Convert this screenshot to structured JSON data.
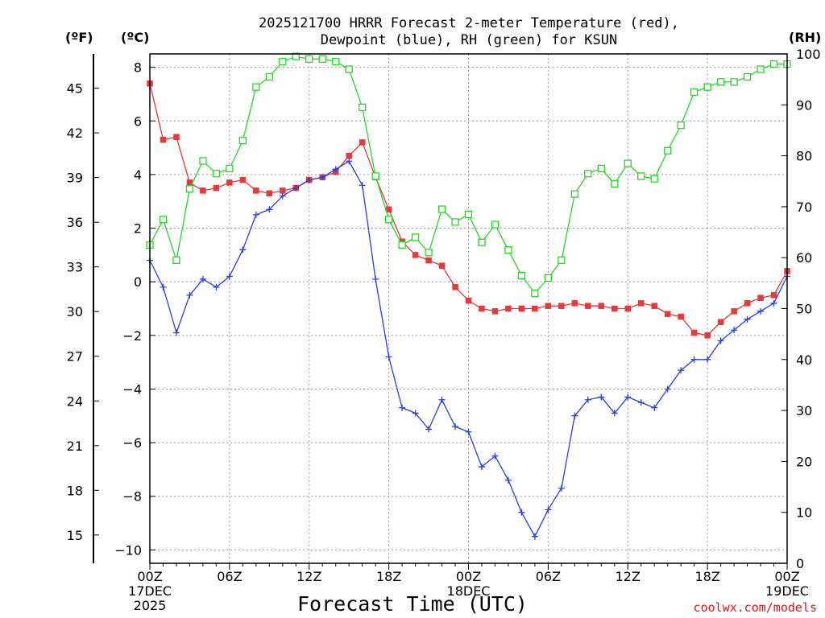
{
  "chart_data": {
    "type": "line",
    "title_lines": [
      "2025121700 HRRR Forecast 2-meter Temperature (red),",
      "Dewpoint (blue), RH (green) for KSUN"
    ],
    "unit_labels": {
      "fahrenheit": "(ºF)",
      "celsius": "(ºC)",
      "rh": "(RH)"
    },
    "xlabel": "Forecast Time (UTC)",
    "credit": "coolwx.com/models",
    "forecast_hours": [
      0,
      1,
      2,
      3,
      4,
      5,
      6,
      7,
      8,
      9,
      10,
      11,
      12,
      13,
      14,
      15,
      16,
      17,
      18,
      19,
      20,
      21,
      22,
      23,
      24,
      25,
      26,
      27,
      28,
      29,
      30,
      31,
      32,
      33,
      34,
      35,
      36,
      37,
      38,
      39,
      40,
      41,
      42,
      43,
      44,
      45,
      46,
      47,
      48
    ],
    "x_ticks": [
      {
        "hour": 0,
        "lines": [
          "00Z",
          "17DEC",
          "2025"
        ]
      },
      {
        "hour": 6,
        "lines": [
          "06Z"
        ]
      },
      {
        "hour": 12,
        "lines": [
          "12Z"
        ]
      },
      {
        "hour": 18,
        "lines": [
          "18Z"
        ]
      },
      {
        "hour": 24,
        "lines": [
          "00Z",
          "18DEC"
        ]
      },
      {
        "hour": 30,
        "lines": [
          "06Z"
        ]
      },
      {
        "hour": 36,
        "lines": [
          "12Z"
        ]
      },
      {
        "hour": 42,
        "lines": [
          "18Z"
        ]
      },
      {
        "hour": 48,
        "lines": [
          "00Z",
          "19DEC"
        ]
      }
    ],
    "xlim": [
      0,
      48
    ],
    "celsius_axis": {
      "ylim": [
        -10.5,
        8.5
      ],
      "ticks": [
        8,
        6,
        4,
        2,
        0,
        -2,
        -4,
        -6,
        -8,
        -10
      ],
      "labels": [
        "8",
        "6",
        "4",
        "2",
        "0",
        "−2",
        "−4",
        "−6",
        "−8",
        "−10"
      ]
    },
    "fahrenheit_axis": {
      "ticks": [
        45,
        42,
        39,
        36,
        33,
        30,
        27,
        24,
        21,
        18,
        15
      ],
      "labels": [
        "45",
        "42",
        "39",
        "36",
        "33",
        "30",
        "27",
        "24",
        "21",
        "18",
        "15"
      ]
    },
    "rh_axis": {
      "ylim": [
        0,
        100
      ],
      "ticks": [
        100,
        90,
        80,
        70,
        60,
        50,
        40,
        30,
        20,
        10,
        0
      ],
      "labels": [
        "100",
        "90",
        "80",
        "70",
        "60",
        "50",
        "40",
        "30",
        "20",
        "10",
        "0"
      ]
    },
    "grid": true,
    "series": [
      {
        "key": "temperature",
        "color": "#e8383a",
        "marker": "filled-square",
        "axis": "celsius",
        "values": [
          7.4,
          5.3,
          5.4,
          3.7,
          3.4,
          3.5,
          3.7,
          3.8,
          3.4,
          3.3,
          3.4,
          3.5,
          3.8,
          3.9,
          4.1,
          4.7,
          5.2,
          3.9,
          2.7,
          1.5,
          1.0,
          0.8,
          0.6,
          -0.2,
          -0.7,
          -1.0,
          -1.1,
          -1.0,
          -1.0,
          -1.0,
          -0.9,
          -0.9,
          -0.8,
          -0.9,
          -0.9,
          -1.0,
          -1.0,
          -0.8,
          -0.9,
          -1.2,
          -1.3,
          -1.9,
          -2.0,
          -1.5,
          -1.1,
          -0.8,
          -0.6,
          -0.5,
          0.4
        ]
      },
      {
        "key": "dewpoint",
        "color": "#2a3fe0",
        "marker": "plus",
        "axis": "celsius",
        "values": [
          0.8,
          -0.2,
          -1.9,
          -0.5,
          0.1,
          -0.2,
          0.2,
          1.2,
          2.5,
          2.7,
          3.2,
          3.5,
          3.8,
          3.9,
          4.2,
          4.5,
          3.6,
          0.1,
          -2.8,
          -4.7,
          -4.9,
          -5.5,
          -4.4,
          -5.4,
          -5.6,
          -6.9,
          -6.5,
          -7.4,
          -8.6,
          -9.5,
          -8.5,
          -7.7,
          -5.0,
          -4.4,
          -4.3,
          -4.9,
          -4.3,
          -4.5,
          -4.7,
          -4.0,
          -3.3,
          -2.9,
          -2.9,
          -2.2,
          -1.8,
          -1.4,
          -1.1,
          -0.8,
          0.2
        ]
      },
      {
        "key": "rh",
        "color": "#29d629",
        "marker": "open-square",
        "axis": "rh",
        "values": [
          62.5,
          67.5,
          59.5,
          73.5,
          79,
          76.5,
          77.5,
          83,
          93.5,
          95.5,
          98.5,
          99.5,
          99,
          99,
          98.5,
          97,
          89.5,
          76,
          67.5,
          62.5,
          64,
          61,
          69.5,
          67,
          68.5,
          63,
          66.5,
          61.5,
          56.5,
          53,
          56,
          59.5,
          72.5,
          76.5,
          77.5,
          74.5,
          78.5,
          76,
          75.5,
          81,
          86,
          92.5,
          93.5,
          94.5,
          94.5,
          95.5,
          97,
          98,
          98
        ]
      }
    ]
  }
}
